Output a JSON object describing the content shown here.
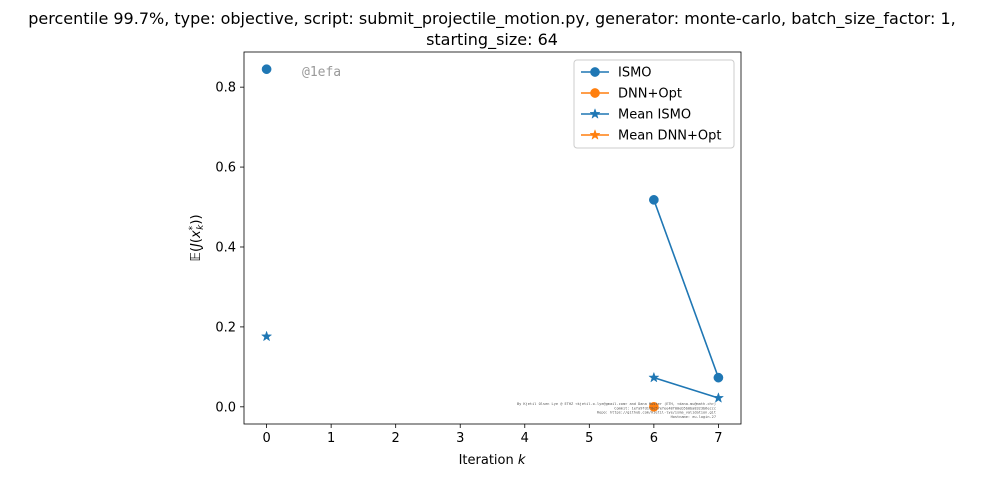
{
  "title_line1": "percentile 99.7%, type: objective, script: submit_projectile_motion.py, generator: monte-carlo, batch_size_factor: 1,",
  "title_line2": "starting_size: 64",
  "watermark": "@1efa",
  "credit_lines": [
    "By Kjetil Olsen Lye @ ETHZ <kjetil.o.lye@gmail.com> and Dana Muster (ETH, <dana.mu@math.ch>)",
    "Commit: 1efa9fd1f8e5?efee48f00eb5b0ba8323b6eccc",
    "Repo: https://github.com/kjetil-lye/isma_validation.git",
    "Hostname: eu-login-27"
  ],
  "chart_data": {
    "type": "line",
    "xlabel": "Iteration k",
    "ylabel": "E(J(x_k^*))",
    "xlim": [
      -0.35,
      7.35
    ],
    "ylim": [
      -0.043,
      0.888
    ],
    "xticks": [
      0,
      1,
      2,
      3,
      4,
      5,
      6,
      7
    ],
    "yticks": [
      0.0,
      0.2,
      0.4,
      0.6,
      0.8
    ],
    "xtick_labels": [
      "0",
      "1",
      "2",
      "3",
      "4",
      "5",
      "6",
      "7"
    ],
    "ytick_labels": [
      "0.0",
      "0.2",
      "0.4",
      "0.6",
      "0.8"
    ],
    "grid": false,
    "legend_position": "top-right",
    "series": [
      {
        "name": "ISMO",
        "color": "#1f77b4",
        "marker": "circle",
        "segments": [
          [
            {
              "x": 0,
              "y": 0.845
            }
          ],
          [
            {
              "x": 6,
              "y": 0.518
            },
            {
              "x": 7,
              "y": 0.073
            }
          ]
        ]
      },
      {
        "name": "DNN+Opt",
        "color": "#ff7f0e",
        "marker": "circle",
        "segments": [
          [
            {
              "x": 6,
              "y": 0.0
            }
          ]
        ]
      },
      {
        "name": "Mean ISMO",
        "color": "#1f77b4",
        "marker": "star",
        "segments": [
          [
            {
              "x": 0,
              "y": 0.176
            }
          ],
          [
            {
              "x": 6,
              "y": 0.073
            },
            {
              "x": 7,
              "y": 0.022
            }
          ]
        ]
      },
      {
        "name": "Mean DNN+Opt",
        "color": "#ff7f0e",
        "marker": "star",
        "segments": []
      }
    ]
  }
}
